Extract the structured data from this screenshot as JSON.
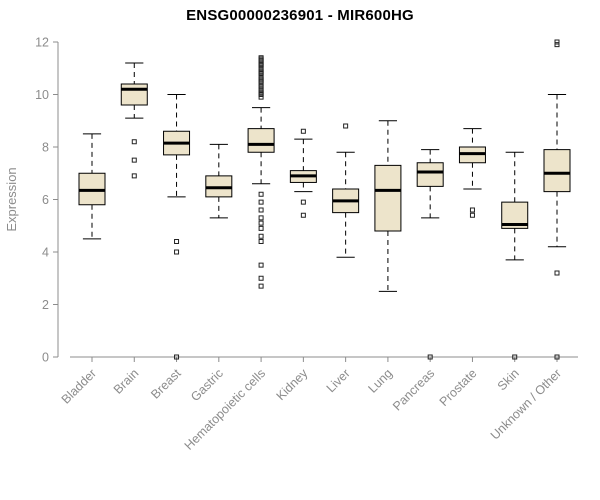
{
  "chart_data": {
    "type": "boxplot",
    "title": "ENSG00000236901 - MIR600HG",
    "ylabel": "Expression",
    "xlabel": "",
    "ylim": [
      0,
      12
    ],
    "yticks": [
      0,
      2,
      4,
      6,
      8,
      10,
      12
    ],
    "grid": false,
    "legend": "none",
    "categories": [
      "Bladder",
      "Brain",
      "Breast",
      "Gastric",
      "Hematopoietic cells",
      "Kidney",
      "Liver",
      "Lung",
      "Pancreas",
      "Prostate",
      "Skin",
      "Unknown / Other"
    ],
    "series": [
      {
        "name": "Bladder",
        "low": 4.5,
        "q1": 5.8,
        "median": 6.35,
        "q3": 7.0,
        "high": 8.5,
        "outliers": []
      },
      {
        "name": "Brain",
        "low": 9.1,
        "q1": 9.6,
        "median": 10.2,
        "q3": 10.4,
        "high": 11.2,
        "outliers": [
          8.2,
          7.5,
          6.9
        ]
      },
      {
        "name": "Breast",
        "low": 6.1,
        "q1": 7.7,
        "median": 8.15,
        "q3": 8.6,
        "high": 10.0,
        "outliers": [
          4.4,
          4.0,
          0
        ]
      },
      {
        "name": "Gastric",
        "low": 5.3,
        "q1": 6.1,
        "median": 6.45,
        "q3": 6.9,
        "high": 8.1,
        "outliers": []
      },
      {
        "name": "Hematopoietic cells",
        "low": 6.6,
        "q1": 7.8,
        "median": 8.1,
        "q3": 8.7,
        "high": 9.5,
        "outliers": [
          11.4,
          11.35,
          11.3,
          11.2,
          11.15,
          11.1,
          11.0,
          10.9,
          10.85,
          10.8,
          10.7,
          10.6,
          10.55,
          10.5,
          10.4,
          10.3,
          10.2,
          10.1,
          10.05,
          10.0,
          9.9,
          6.2,
          5.9,
          5.6,
          5.3,
          5.1,
          4.9,
          4.6,
          4.4,
          3.5,
          3.0,
          2.7
        ]
      },
      {
        "name": "Kidney",
        "low": 6.3,
        "q1": 6.65,
        "median": 6.9,
        "q3": 7.1,
        "high": 8.3,
        "outliers": [
          8.6,
          5.9,
          5.4
        ]
      },
      {
        "name": "Liver",
        "low": 3.8,
        "q1": 5.5,
        "median": 5.95,
        "q3": 6.4,
        "high": 7.8,
        "outliers": [
          8.8
        ]
      },
      {
        "name": "Lung",
        "low": 2.5,
        "q1": 4.8,
        "median": 6.35,
        "q3": 7.3,
        "high": 9.0,
        "outliers": []
      },
      {
        "name": "Pancreas",
        "low": 5.3,
        "q1": 6.5,
        "median": 7.05,
        "q3": 7.4,
        "high": 7.9,
        "outliers": [
          0
        ]
      },
      {
        "name": "Prostate",
        "low": 6.4,
        "q1": 7.4,
        "median": 7.75,
        "q3": 8.0,
        "high": 8.7,
        "outliers": [
          5.6,
          5.4
        ]
      },
      {
        "name": "Skin",
        "low": 3.7,
        "q1": 4.9,
        "median": 5.05,
        "q3": 5.9,
        "high": 7.8,
        "outliers": [
          0
        ]
      },
      {
        "name": "Unknown / Other",
        "low": 4.2,
        "q1": 6.3,
        "median": 7.0,
        "q3": 7.9,
        "high": 10.0,
        "outliers": [
          12.0,
          11.9,
          3.2,
          0
        ]
      }
    ],
    "style": {
      "box_fill": "#EDE4CB",
      "box_stroke": "#000000",
      "axis_color": "#8C8C8C",
      "tick_color": "#8C8C8C",
      "title_color": "#000000",
      "background": "#FFFFFF"
    }
  }
}
